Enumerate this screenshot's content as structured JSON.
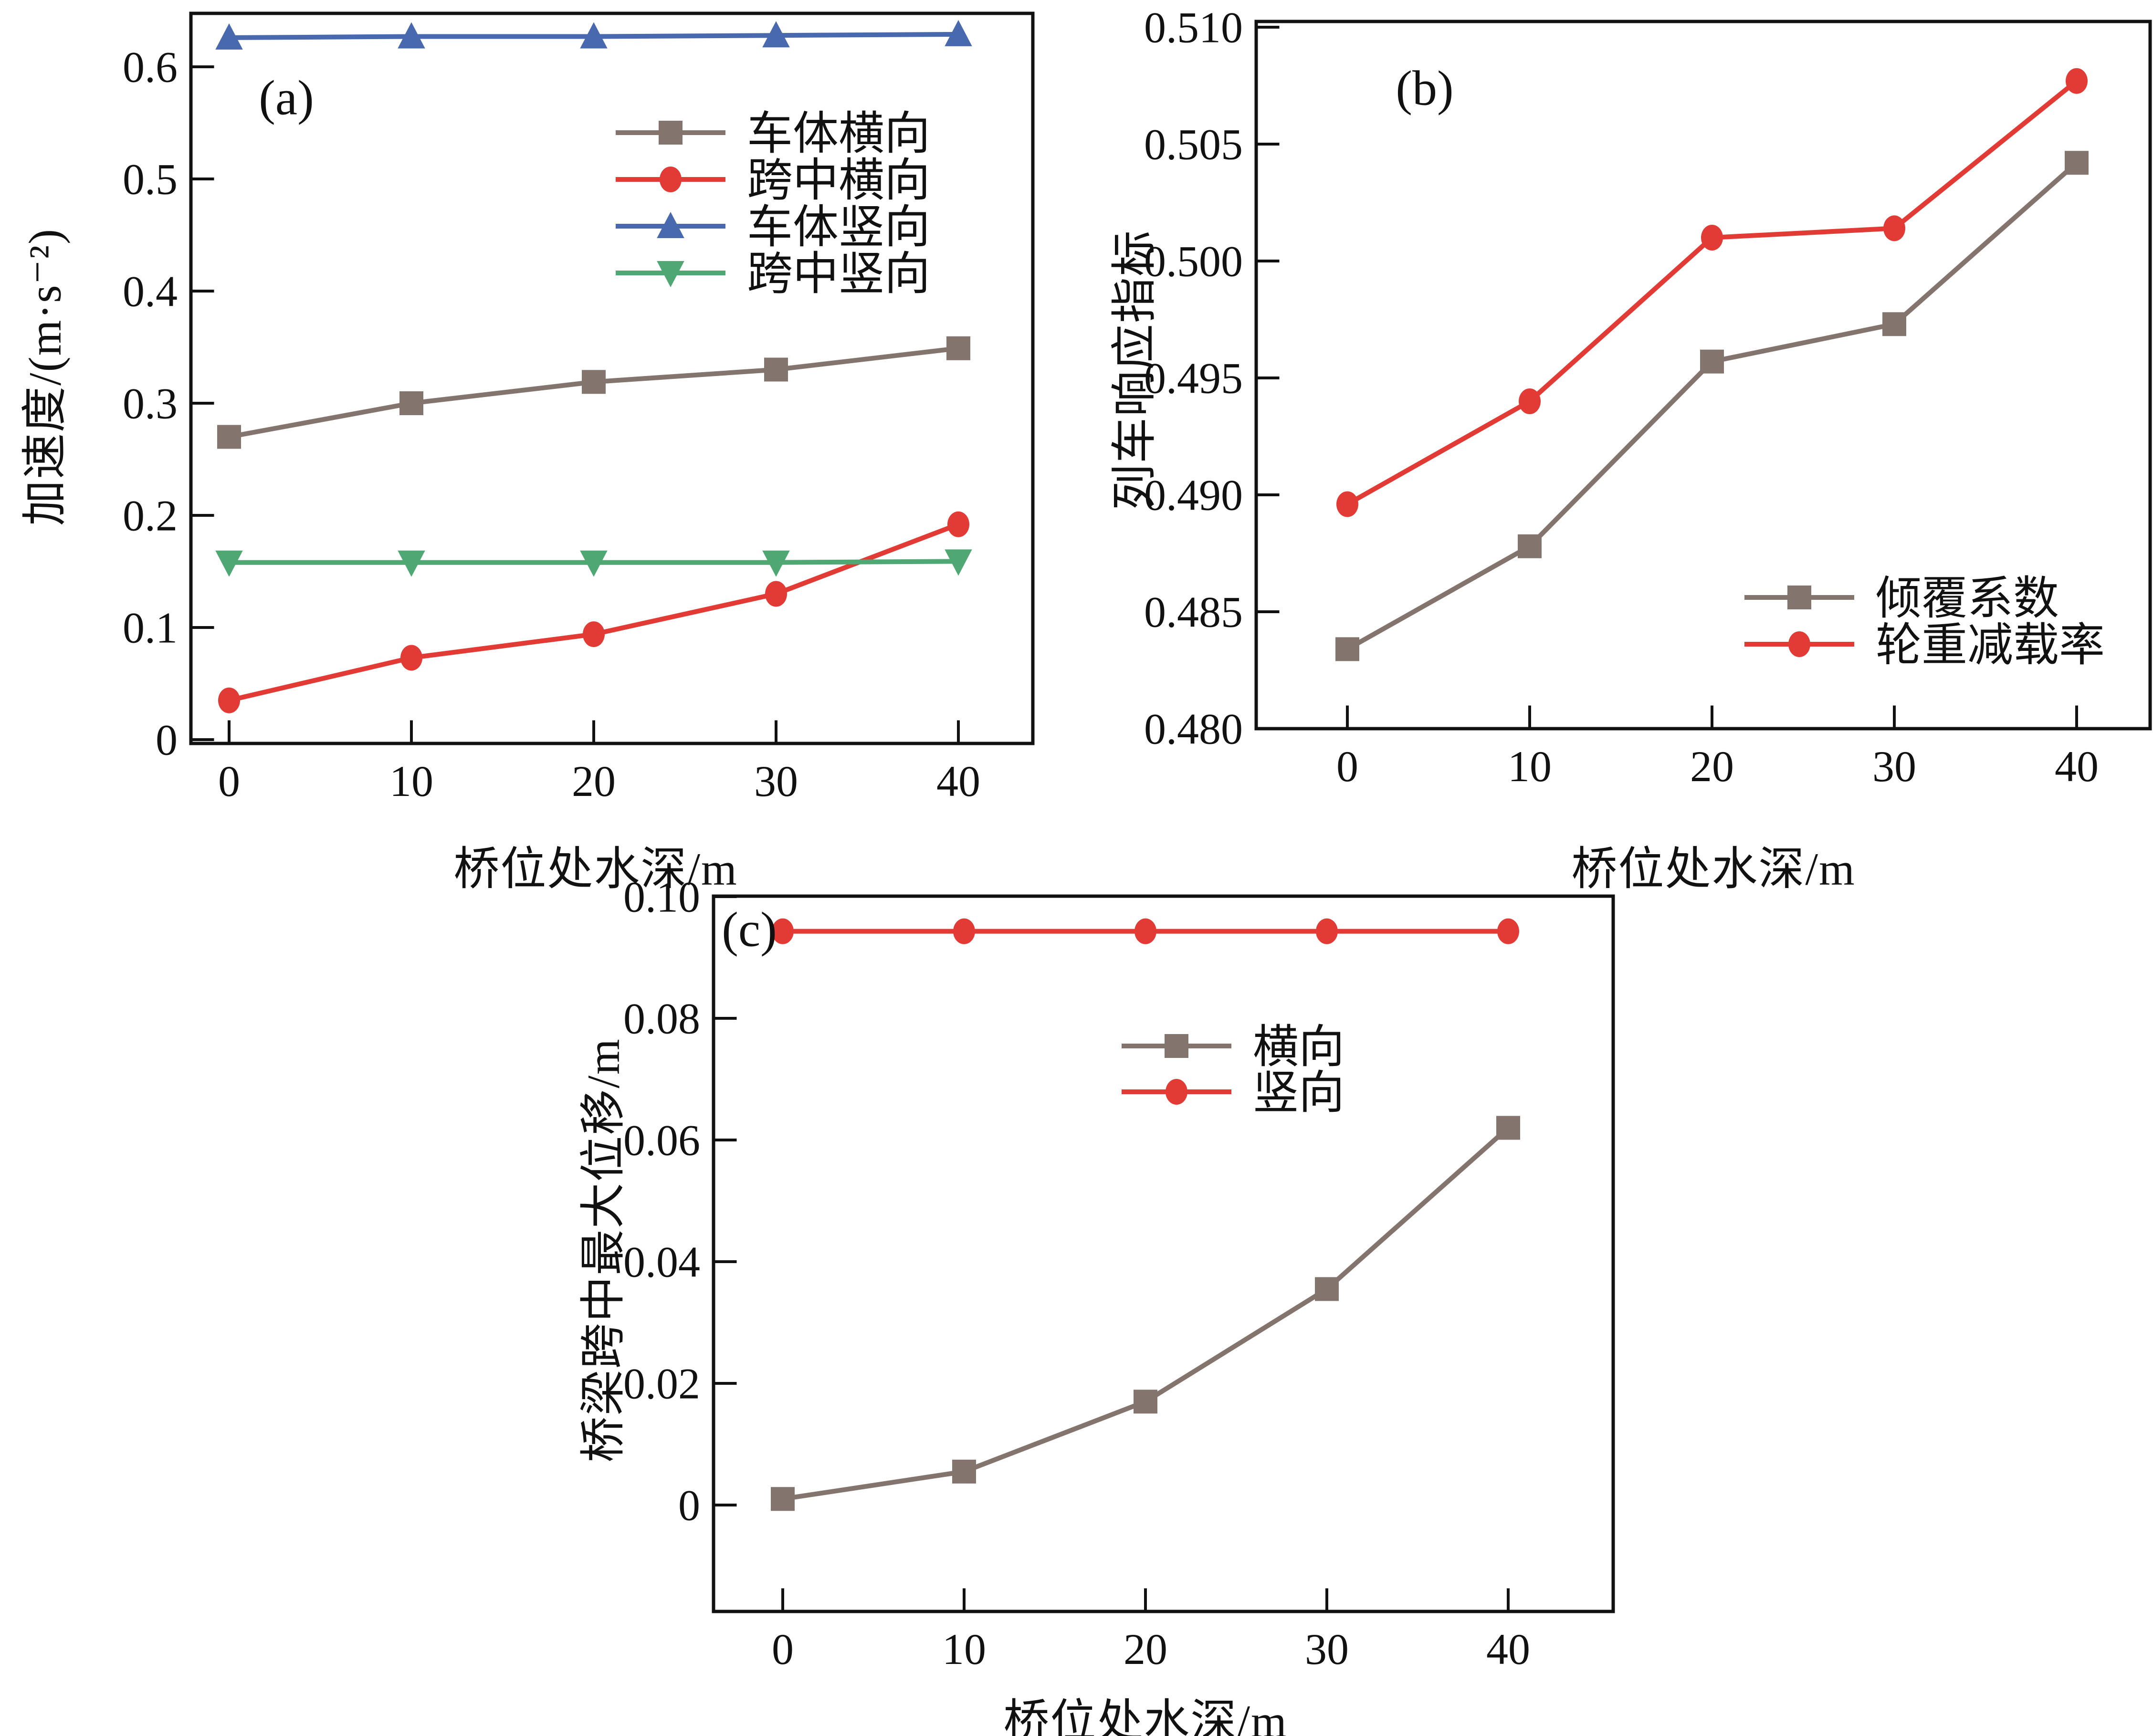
{
  "figure": {
    "background": "#ffffff",
    "text_color": "#111111"
  },
  "chart_data": [
    {
      "panel": "(a)",
      "type": "line",
      "x": [
        0,
        10,
        20,
        30,
        40
      ],
      "xlabel": "桥位处水深/m",
      "ylabel": "加速度/(m·s⁻²)",
      "ylim": [
        0,
        0.65
      ],
      "xticks": [
        "0",
        "10",
        "20",
        "30",
        "40"
      ],
      "yticks": [
        "0",
        "0.1",
        "0.2",
        "0.3",
        "0.4",
        "0.5",
        "0.6"
      ],
      "grid": false,
      "legend_position": "inside-upper-right",
      "series": [
        {
          "name": "车体横向",
          "marker": "square",
          "color": "#84746e",
          "values": [
            0.27,
            0.3,
            0.319,
            0.33,
            0.349
          ]
        },
        {
          "name": "跨中横向",
          "marker": "circle",
          "color": "#e23a34",
          "values": [
            0.035,
            0.073,
            0.094,
            0.13,
            0.192
          ]
        },
        {
          "name": "车体竖向",
          "marker": "triangle-up",
          "color": "#4969ae",
          "values": [
            0.626,
            0.627,
            0.627,
            0.628,
            0.629
          ]
        },
        {
          "name": "跨中竖向",
          "marker": "triangle-down",
          "color": "#4fa873",
          "values": [
            0.158,
            0.158,
            0.158,
            0.158,
            0.159
          ]
        }
      ]
    },
    {
      "panel": "(b)",
      "type": "line",
      "x": [
        0,
        10,
        20,
        30,
        40
      ],
      "xlabel": "桥位处水深/m",
      "ylabel": "列车响应指标",
      "ylim": [
        0.48,
        0.51
      ],
      "xticks": [
        "0",
        "10",
        "20",
        "30",
        "40"
      ],
      "yticks": [
        "0.480",
        "0.485",
        "0.490",
        "0.495",
        "0.500",
        "0.505",
        "0.510"
      ],
      "grid": false,
      "legend_position": "inside-lower-right",
      "series": [
        {
          "name": "倾覆系数",
          "marker": "square",
          "color": "#84746e",
          "values": [
            0.4834,
            0.4878,
            0.4957,
            0.4973,
            0.5042
          ]
        },
        {
          "name": "轮重减载率",
          "marker": "circle",
          "color": "#e23a34",
          "values": [
            0.4896,
            0.494,
            0.501,
            0.5014,
            0.5077
          ]
        }
      ]
    },
    {
      "panel": "(c)",
      "type": "line",
      "x": [
        0,
        10,
        20,
        30,
        40
      ],
      "xlabel": "桥位处水深/m",
      "ylabel": "桥梁跨中最大位移/m",
      "ylim": [
        0,
        0.1
      ],
      "xticks": [
        "0",
        "10",
        "20",
        "30",
        "40"
      ],
      "yticks": [
        "0",
        "0.02",
        "0.04",
        "0.06",
        "0.08",
        "0.10"
      ],
      "grid": false,
      "legend_position": "inside-upper-middle",
      "series": [
        {
          "name": "横向",
          "marker": "square",
          "color": "#84746e",
          "values": [
            0.001,
            0.0055,
            0.017,
            0.0355,
            0.062
          ]
        },
        {
          "name": "竖向",
          "marker": "circle",
          "color": "#e23a34",
          "values": [
            0.0943,
            0.0943,
            0.0943,
            0.0943,
            0.0943
          ]
        }
      ]
    }
  ]
}
